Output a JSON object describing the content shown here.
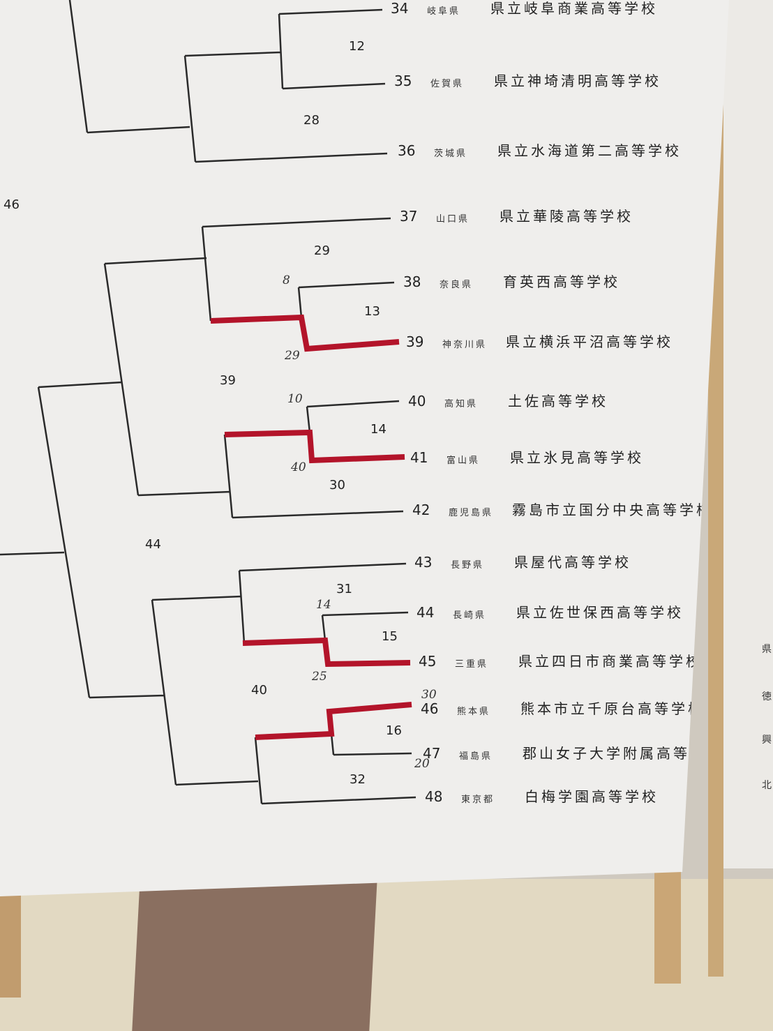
{
  "entries": [
    {
      "num": "34",
      "pref": "岐阜県",
      "school": "県立岐阜商業高等学校"
    },
    {
      "num": "35",
      "pref": "佐賀県",
      "school": "県立神埼清明高等学校"
    },
    {
      "num": "36",
      "pref": "茨城県",
      "school": "県立水海道第二高等学校"
    },
    {
      "num": "37",
      "pref": "山口県",
      "school": "県立華陵高等学校"
    },
    {
      "num": "38",
      "pref": "奈良県",
      "school": "育英西高等学校"
    },
    {
      "num": "39",
      "pref": "神奈川県",
      "school": "県立横浜平沼高等学校"
    },
    {
      "num": "40",
      "pref": "高知県",
      "school": "土佐高等学校"
    },
    {
      "num": "41",
      "pref": "富山県",
      "school": "県立氷見高等学校"
    },
    {
      "num": "42",
      "pref": "鹿児島県",
      "school": "霧島市立国分中央高等学校"
    },
    {
      "num": "43",
      "pref": "長野県",
      "school": "県屋代高等学校"
    },
    {
      "num": "44",
      "pref": "長崎県",
      "school": "県立佐世保西高等学校"
    },
    {
      "num": "45",
      "pref": "三重県",
      "school": "県立四日市商業高等学校"
    },
    {
      "num": "46",
      "pref": "熊本県",
      "school": "熊本市立千原台高等学校"
    },
    {
      "num": "47",
      "pref": "福島県",
      "school": "郡山女子大学附属高等学校"
    },
    {
      "num": "48",
      "pref": "東京都",
      "school": "白梅学園高等学校"
    }
  ],
  "match_numbers": [
    "12",
    "28",
    "46",
    "29",
    "13",
    "39",
    "14",
    "30",
    "44",
    "31",
    "15",
    "40",
    "16",
    "32"
  ],
  "handwritten_scores": [
    "8",
    "29",
    "10",
    "40",
    "14",
    "25",
    "30",
    "20"
  ],
  "next_board_chars": [
    "県",
    "徳",
    "興",
    "北"
  ],
  "colors": {
    "bracket_line": "#2a2a2a",
    "winner_tape": "#b3142a",
    "board": "#efeeec"
  }
}
